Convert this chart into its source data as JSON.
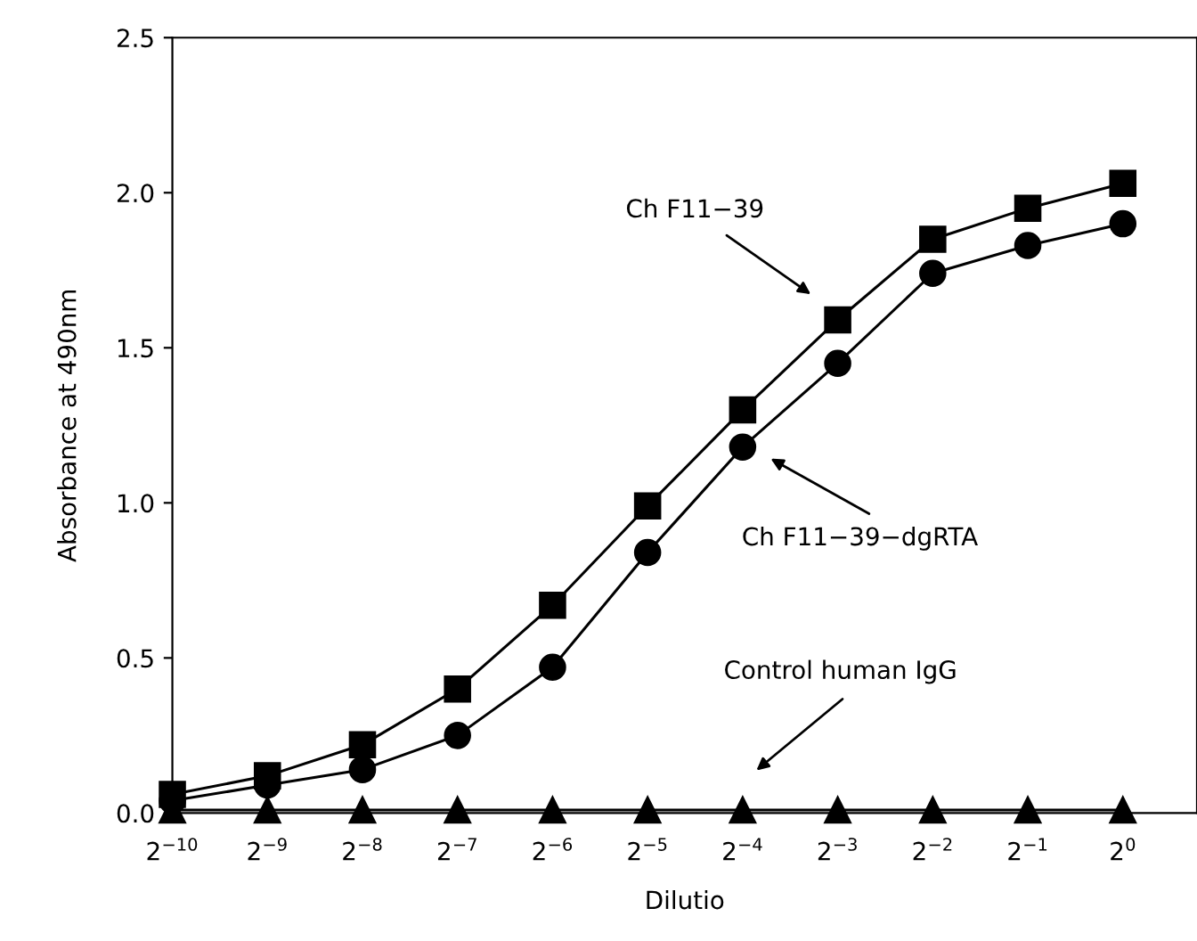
{
  "chart_data": {
    "type": "line",
    "xlabel": "Dilutio",
    "ylabel": "Absorbance at 490nm",
    "categories": [
      "2$^{−10}$",
      "2$^{−9}$",
      "2$^{−8}$",
      "2$^{−7}$",
      "2$^{−6}$",
      "2$^{−5}$",
      "2$^{−4}$",
      "2$^{−3}$",
      "2$^{−2}$",
      "2$^{−1}$",
      "2$^{0}$"
    ],
    "series": [
      {
        "color": "#000000",
        "marker": "square",
        "values": [
          0.06,
          0.12,
          0.22,
          0.4,
          0.67,
          0.99,
          1.3,
          1.59,
          1.85,
          1.95,
          2.03
        ]
      },
      {
        "color": "#000000",
        "marker": "circle",
        "values": [
          0.04,
          0.09,
          0.14,
          0.25,
          0.47,
          0.84,
          1.18,
          1.45,
          1.74,
          1.83,
          1.9
        ]
      },
      {
        "color": "#000000",
        "marker": "triangle",
        "values": [
          0.01,
          0.01,
          0.01,
          0.01,
          0.01,
          0.01,
          0.01,
          0.01,
          0.01,
          0.01,
          0.01
        ]
      }
    ],
    "annotations": [
      "Ch F11−39",
      "Ch F11−39−dgRTA",
      "Control human IgG"
    ],
    "ylim": [
      0,
      2.5
    ],
    "yticks": [
      {
        "value": 0,
        "label": "0.0"
      },
      {
        "value": 0.5,
        "label": "0.5"
      },
      {
        "value": 1,
        "label": "1.0"
      },
      {
        "value": 1.5,
        "label": "1.5"
      },
      {
        "value": 2,
        "label": "2.0"
      },
      {
        "value": 2.5,
        "label": "2.5"
      }
    ],
    "grid": false,
    "legend": false,
    "line_style": "solid"
  }
}
